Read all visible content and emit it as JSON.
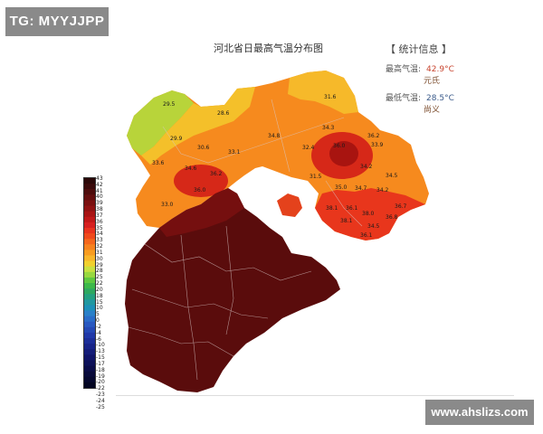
{
  "watermark_tag": "TG: MYYJJPP",
  "watermark_site": "www.ahslizs.com",
  "map": {
    "title": "河北省日最高气温分布图",
    "stats": {
      "header": "【 统计信息 】",
      "max_label": "最高气温:",
      "max_value": "42.9°C",
      "max_station": "元氏",
      "min_label": "最低气温:",
      "min_value": "28.5°C",
      "min_station": "尚义"
    },
    "legend": {
      "ticks": [
        "43",
        "42",
        "41",
        "40",
        "39",
        "38",
        "37",
        "36",
        "35",
        "34",
        "33",
        "32",
        "31",
        "30",
        "29",
        "28",
        "25",
        "22",
        "20",
        "18",
        "15",
        "10",
        "5",
        "0",
        "-2",
        "-4",
        "-6",
        "-10",
        "-13",
        "-15",
        "-17",
        "-18",
        "-19",
        "-20",
        "-22",
        "-23",
        "-24",
        "-25"
      ],
      "colors": [
        "#2a0808",
        "#3a0a0a",
        "#4e0d0d",
        "#640f0f",
        "#7a1010",
        "#901212",
        "#a81414",
        "#c01818",
        "#d62020",
        "#e8331e",
        "#f04a1c",
        "#f4661c",
        "#f6821e",
        "#f89c20",
        "#f8b62a",
        "#f0d02e",
        "#c8e040",
        "#98d840",
        "#5fc840",
        "#3cb84a",
        "#2ea860",
        "#24a080",
        "#2098a0",
        "#1c90b8",
        "#2a80c8",
        "#2a6cc8",
        "#2858c0",
        "#2448b4",
        "#2038a8",
        "#1c2e98",
        "#182488",
        "#141c78",
        "#101468",
        "#0c1058",
        "#0a0c48",
        "#080a3a",
        "#06082e",
        "#040622"
      ]
    },
    "station_labels": [
      "29.5",
      "28.6",
      "31.6",
      "29.9",
      "30.6",
      "34.8",
      "34.3",
      "36.0",
      "33.9",
      "34.5",
      "33.6",
      "33.1",
      "32.4",
      "36.2",
      "34.2",
      "34.6",
      "31.5",
      "35.0",
      "34.7",
      "34.2",
      "36.2",
      "33.0",
      "36.1",
      "38.1",
      "38.0",
      "36.7",
      "36.8",
      "38.1",
      "34.5",
      "36.1",
      "36.0"
    ]
  }
}
